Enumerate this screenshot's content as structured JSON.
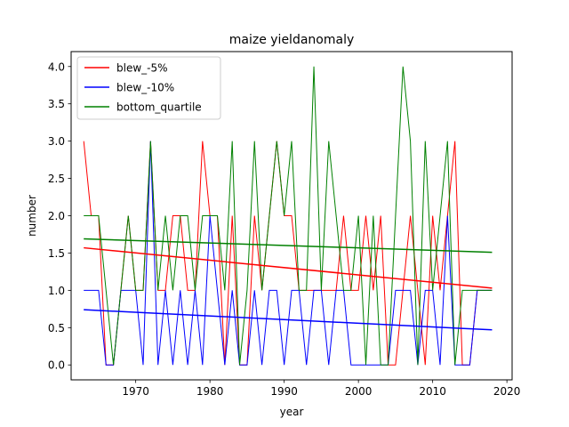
{
  "chart_data": {
    "type": "line",
    "title": "maize yieldanomaly",
    "xlabel": "year",
    "ylabel": "number",
    "xlim": [
      1961.3,
      2020.7
    ],
    "ylim": [
      -0.2,
      4.2
    ],
    "xticks": [
      1970,
      1980,
      1990,
      2000,
      2010,
      2020
    ],
    "yticks": [
      0.0,
      0.5,
      1.0,
      1.5,
      2.0,
      2.5,
      3.0,
      3.5,
      4.0
    ],
    "legend_position": "top-left",
    "grid": false,
    "x": [
      1963,
      1964,
      1965,
      1966,
      1967,
      1968,
      1969,
      1970,
      1971,
      1972,
      1973,
      1974,
      1975,
      1976,
      1977,
      1978,
      1979,
      1980,
      1981,
      1982,
      1983,
      1984,
      1985,
      1986,
      1987,
      1988,
      1989,
      1990,
      1991,
      1992,
      1993,
      1994,
      1995,
      1996,
      1997,
      1998,
      1999,
      2000,
      2001,
      2002,
      2003,
      2004,
      2005,
      2006,
      2007,
      2008,
      2009,
      2010,
      2011,
      2012,
      2013,
      2014,
      2015,
      2016,
      2017,
      2018
    ],
    "series": [
      {
        "name": "blew_-5%",
        "color": "#ff0000",
        "values": [
          3,
          2,
          2,
          0,
          0,
          1,
          2,
          1,
          1,
          3,
          1,
          1,
          2,
          2,
          1,
          1,
          3,
          2,
          2,
          0,
          2,
          0,
          0,
          2,
          1,
          2,
          3,
          2,
          2,
          1,
          1,
          1,
          1,
          1,
          1,
          2,
          1,
          1,
          2,
          1,
          2,
          0,
          0,
          1,
          2,
          1,
          0,
          2,
          1,
          2,
          3,
          0,
          0,
          1,
          1,
          1
        ],
        "trend": [
          1.57,
          1.03
        ]
      },
      {
        "name": "blew_-10%",
        "color": "#0000ff",
        "values": [
          1,
          1,
          1,
          0,
          0,
          1,
          1,
          1,
          0,
          3,
          0,
          1,
          0,
          1,
          0,
          1,
          0,
          2,
          1,
          0,
          1,
          0,
          0,
          1,
          0,
          1,
          1,
          0,
          1,
          1,
          0,
          1,
          1,
          0,
          1,
          1,
          0,
          0,
          0,
          0,
          0,
          0,
          1,
          1,
          1,
          0,
          1,
          1,
          0,
          2,
          0,
          0,
          0,
          1,
          1,
          1
        ],
        "trend": [
          0.74,
          0.47
        ]
      },
      {
        "name": "bottom_quartile",
        "color": "#008000",
        "values": [
          2,
          2,
          2,
          1,
          0,
          1,
          2,
          1,
          1,
          3,
          1,
          2,
          1,
          2,
          2,
          1,
          2,
          2,
          2,
          1,
          3,
          0,
          1,
          3,
          1,
          2,
          3,
          2,
          3,
          1,
          1,
          4,
          1,
          3,
          2,
          1,
          1,
          2,
          0,
          2,
          0,
          0,
          2,
          4,
          3,
          0,
          3,
          1,
          2,
          3,
          0,
          1,
          1,
          1,
          1,
          1
        ],
        "trend": [
          1.69,
          1.51
        ]
      }
    ]
  }
}
